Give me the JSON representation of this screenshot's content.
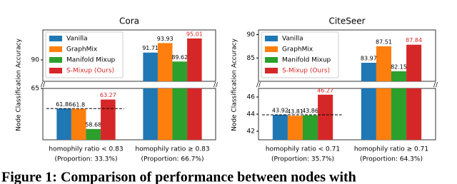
{
  "chart_data": [
    {
      "type": "bar",
      "title": "Cora",
      "ylabel": "Node Classification Accuracy",
      "categories": [
        [
          "homophily ratio < 0.83",
          "(Proportion: 33.3%)"
        ],
        [
          "homophily ratio ≥ 0.83",
          "(Proportion: 66.7%)"
        ]
      ],
      "series": [
        {
          "name": "Vanilla",
          "color": "#1f77b4",
          "values": [
            61.86,
            91.71
          ]
        },
        {
          "name": "GraphMix",
          "color": "#ff7f0e",
          "values": [
            61.8,
            93.93
          ]
        },
        {
          "name": "Manifold Mixup",
          "color": "#2ca02c",
          "values": [
            58.68,
            89.62
          ]
        },
        {
          "name": "S-Mixup (Ours)",
          "color": "#d62728",
          "values": [
            63.27,
            95.01
          ]
        }
      ],
      "ylim": [
        [
          57,
          65
        ],
        [
          85,
          97
        ]
      ],
      "yticks": [
        [
          65
        ],
        [
          90
        ]
      ]
    },
    {
      "type": "bar",
      "title": "CiteSeer",
      "ylabel": "Node Classification Accuracy",
      "categories": [
        [
          "homophily ratio < 0.71",
          "(Proportion: 35.7%)"
        ],
        [
          "homophily ratio ≥ 0.71",
          "(Proportion: 64.3%)"
        ]
      ],
      "series": [
        {
          "name": "Vanilla",
          "color": "#1f77b4",
          "values": [
            43.92,
            83.97
          ]
        },
        {
          "name": "GraphMix",
          "color": "#ff7f0e",
          "values": [
            43.81,
            87.51
          ]
        },
        {
          "name": "Manifold Mixup",
          "color": "#2ca02c",
          "values": [
            43.86,
            82.15
          ]
        },
        {
          "name": "S-Mixup (Ours)",
          "color": "#d62728",
          "values": [
            46.27,
            87.84
          ]
        }
      ],
      "ylim": [
        [
          41,
          47
        ],
        [
          80,
          91
        ]
      ],
      "yticks": [
        [
          42,
          44,
          46
        ],
        [
          85,
          90
        ]
      ]
    }
  ],
  "caption": "Figure 1: Comparison of performance between nodes with"
}
